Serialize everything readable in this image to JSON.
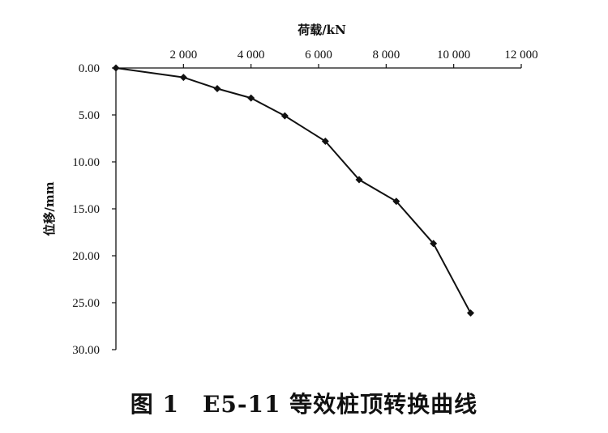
{
  "chart_data": {
    "type": "line",
    "title": "",
    "xlabel": "荷载/kN",
    "ylabel": "位移/mm",
    "x_axis_position": "top",
    "y_inverted": true,
    "xlim": [
      0,
      12000
    ],
    "ylim": [
      0,
      30
    ],
    "x_ticks": [
      2000,
      4000,
      6000,
      8000,
      10000,
      12000
    ],
    "x_tick_labels": [
      "2 000",
      "4 000",
      "6 000",
      "8 000",
      "10 000",
      "12 000"
    ],
    "y_ticks": [
      0,
      5,
      10,
      15,
      20,
      25,
      30
    ],
    "y_tick_labels": [
      "0.00",
      "5.00",
      "10.00",
      "15.00",
      "20.00",
      "25.00",
      "30.00"
    ],
    "grid": false,
    "series": [
      {
        "x": [
          0,
          2000,
          3000,
          4000,
          5000,
          6200,
          7200,
          8300,
          9400,
          10500
        ],
        "y": [
          0,
          1.0,
          2.2,
          3.2,
          5.1,
          7.8,
          11.9,
          14.2,
          18.7,
          26.1
        ],
        "color": "#111111",
        "marker": "diamond"
      }
    ]
  },
  "caption": "图 1　E5-11 等效桩顶转换曲线"
}
